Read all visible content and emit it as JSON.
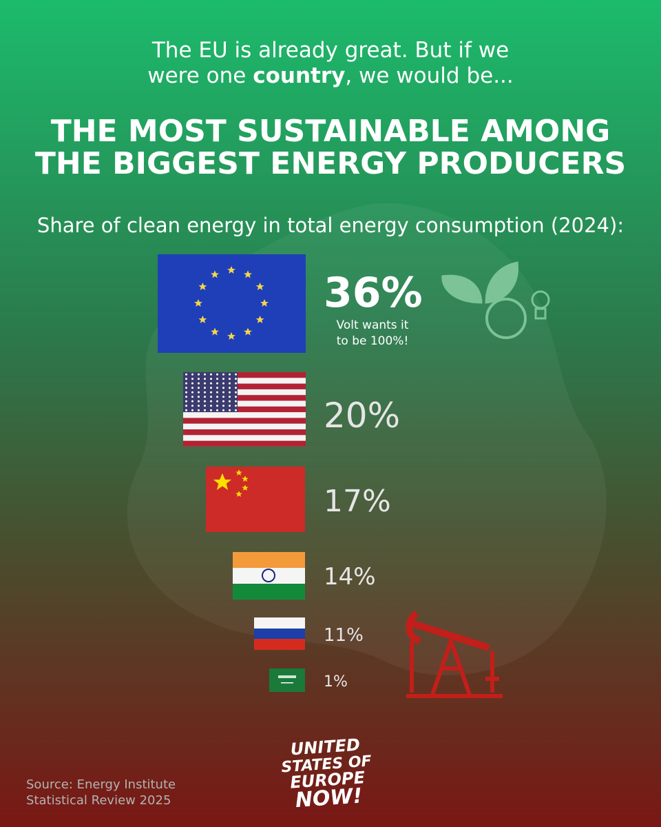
{
  "header": {
    "intro_line1": "The EU is already great. But if we",
    "intro_line2_start": "were one ",
    "intro_line2_bold": "country",
    "intro_line2_end": ", we would be...",
    "title_line1": "THE MOST SUSTAINABLE AMONG",
    "title_line2": "THE BIGGEST ENERGY PRODUCERS",
    "subtitle": "Share of clean energy in total energy consumption (2024):"
  },
  "rows": [
    {
      "label": "36%",
      "note": [
        "Volt wants it",
        "to be 100%!"
      ]
    },
    {
      "label": "20%"
    },
    {
      "label": "17%"
    },
    {
      "label": "14%"
    },
    {
      "label": "11%"
    },
    {
      "label": "1%"
    }
  ],
  "logo": [
    "UNITED",
    "STATES OF",
    "EUROPE",
    "NOW!"
  ],
  "source": [
    "Source: Energy Institute",
    "Statistical Review 2025"
  ]
}
